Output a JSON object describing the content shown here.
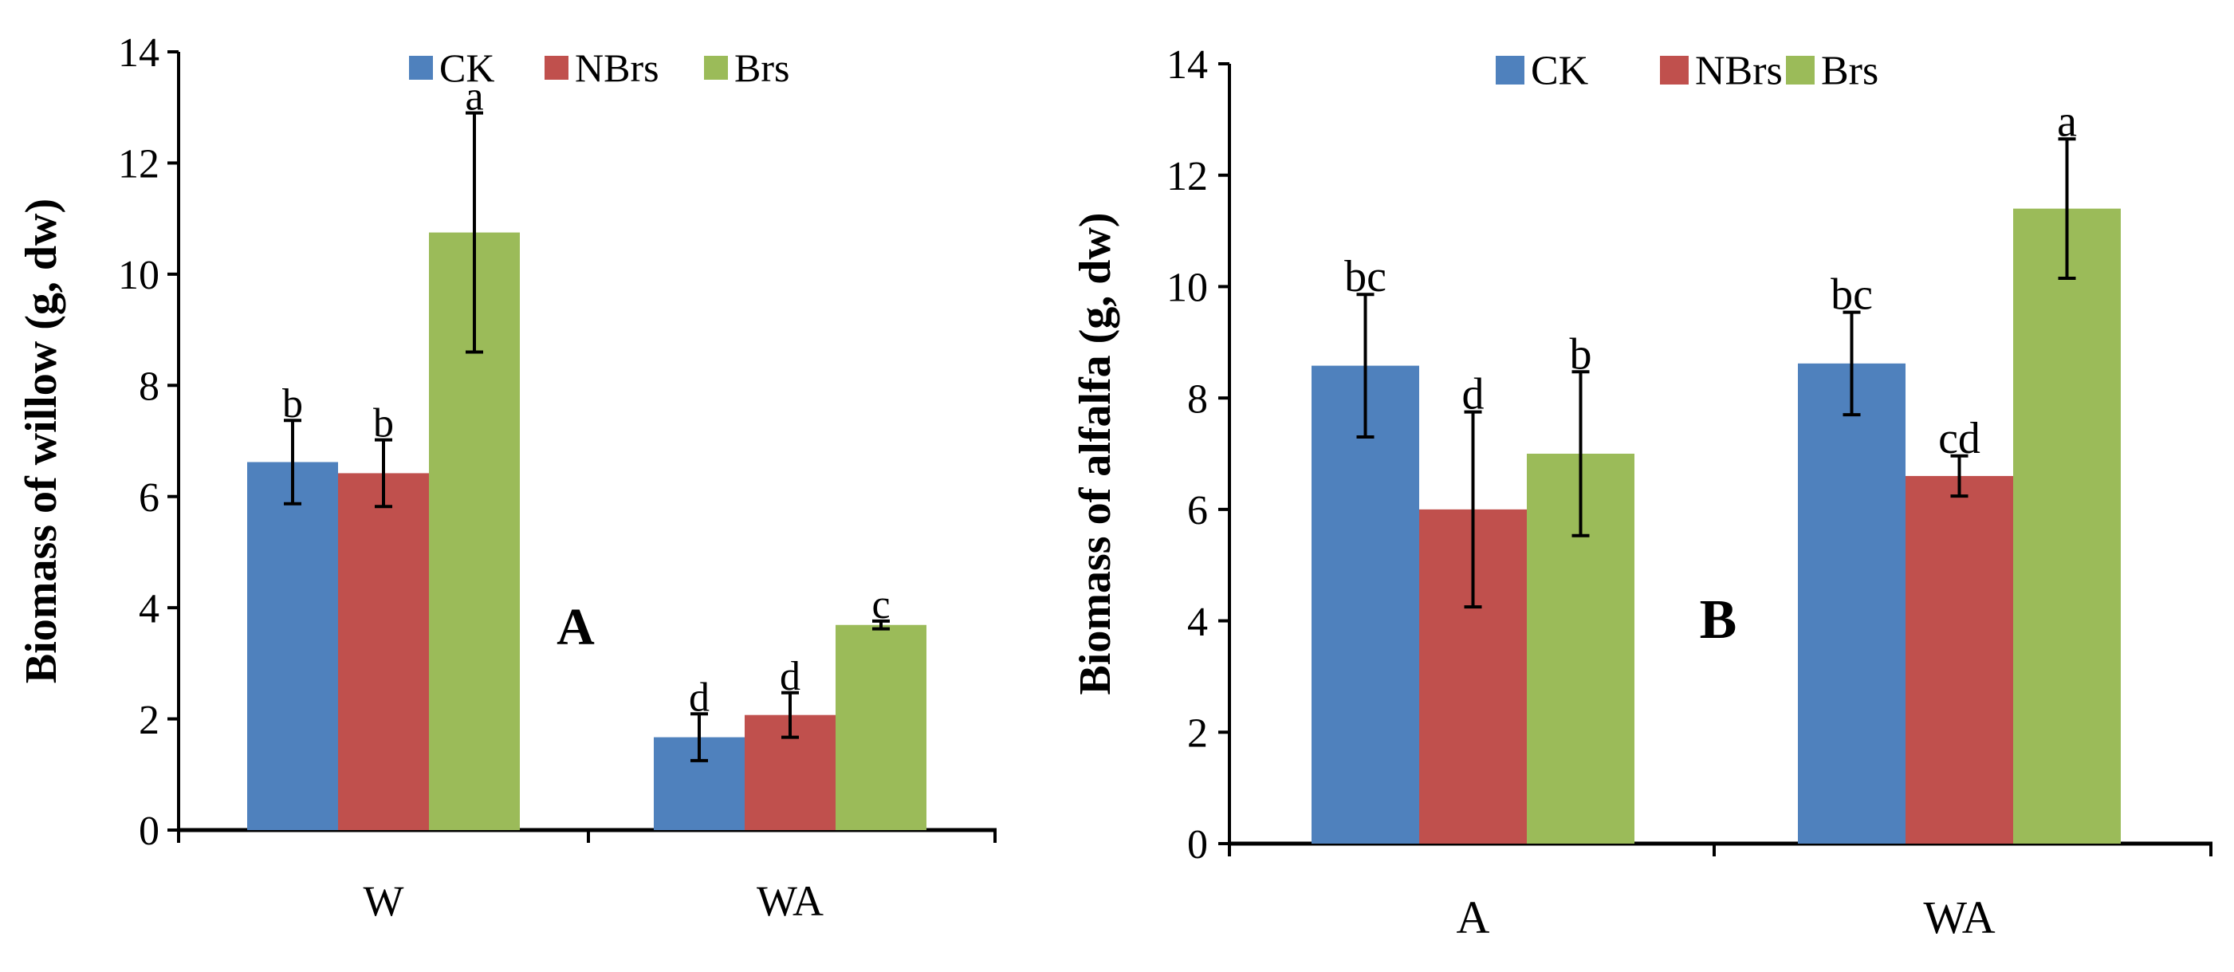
{
  "chart_data": [
    {
      "type": "bar",
      "panel_label": "A",
      "title": "",
      "xlabel": "",
      "ylabel": "Biomass of willow (g, dw)",
      "ylim": [
        0,
        14
      ],
      "yticks": [
        0,
        2,
        4,
        6,
        8,
        10,
        12,
        14
      ],
      "categories": [
        "W",
        "WA"
      ],
      "legend": {
        "position": "top-center"
      },
      "series": [
        {
          "name": "CK",
          "color": "#4F81BD",
          "values": [
            6.62,
            1.67
          ],
          "errors": [
            0.75,
            0.42
          ],
          "letters": [
            "b",
            "d"
          ]
        },
        {
          "name": "NBrs",
          "color": "#C0504D",
          "values": [
            6.42,
            2.07
          ],
          "errors": [
            0.6,
            0.4
          ],
          "letters": [
            "b",
            "d"
          ]
        },
        {
          "name": "Brs",
          "color": "#9BBB59",
          "values": [
            10.75,
            3.69
          ],
          "errors": [
            2.15,
            0.07
          ],
          "letters": [
            "a",
            "c"
          ]
        }
      ]
    },
    {
      "type": "bar",
      "panel_label": "B",
      "title": "",
      "xlabel": "",
      "ylabel": "Biomass of alfalfa (g, dw)",
      "ylim": [
        0,
        14
      ],
      "yticks": [
        0,
        2,
        4,
        6,
        8,
        10,
        12,
        14
      ],
      "categories": [
        "A",
        "WA"
      ],
      "legend": {
        "position": "top-center"
      },
      "series": [
        {
          "name": "CK",
          "color": "#4F81BD",
          "values": [
            8.58,
            8.62
          ],
          "errors": [
            1.28,
            0.92
          ],
          "letters": [
            "bc",
            "bc"
          ]
        },
        {
          "name": "NBrs",
          "color": "#C0504D",
          "values": [
            6.0,
            6.6
          ],
          "errors": [
            1.75,
            0.36
          ],
          "letters": [
            "d",
            "cd"
          ]
        },
        {
          "name": "Brs",
          "color": "#9BBB59",
          "values": [
            7.0,
            11.4
          ],
          "errors": [
            1.47,
            1.25
          ],
          "letters": [
            "b",
            "a"
          ]
        }
      ]
    }
  ]
}
